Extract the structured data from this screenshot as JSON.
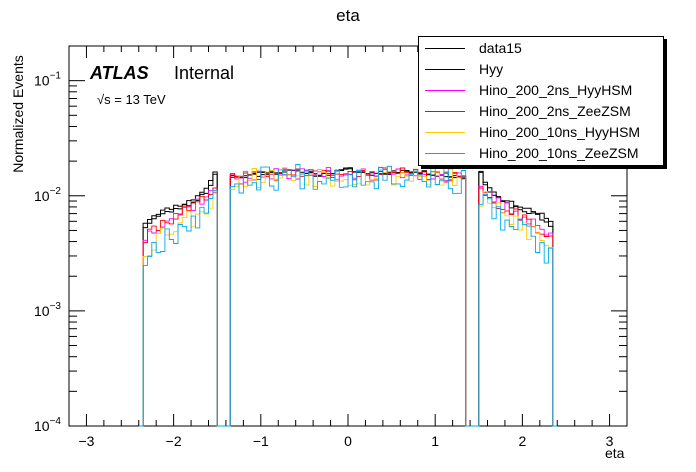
{
  "chart_data": {
    "type": "histogram",
    "title": "eta",
    "xlabel": "eta",
    "ylabel": "Normalized Events",
    "xlim": [
      -3.2,
      3.2
    ],
    "ylim": [
      0.0001,
      0.2
    ],
    "yscale": "log",
    "xticks": [
      "−3",
      "−2",
      "−1",
      "0",
      "1",
      "2",
      "3"
    ],
    "xtick_values": [
      -3,
      -2,
      -1,
      0,
      1,
      2,
      3
    ],
    "yticks": [
      {
        "base": "10",
        "exp": "−4",
        "value": 0.0001
      },
      {
        "base": "10",
        "exp": "−3",
        "value": 0.001
      },
      {
        "base": "10",
        "exp": "−2",
        "value": 0.01
      },
      {
        "base": "10",
        "exp": "−1",
        "value": 0.1
      }
    ],
    "acceptance": {
      "eta_max": 2.37,
      "crack_low": 1.37,
      "crack_high": 1.52
    },
    "bin_width": 0.05,
    "annotations": {
      "atlas": "ATLAS",
      "status": "Internal",
      "energy": "√s = 13 TeV"
    },
    "series": [
      {
        "name": "data15",
        "color": "#000000",
        "shape": [
          [
            0.0,
            0.017
          ],
          [
            0.3,
            0.015
          ],
          [
            0.6,
            0.0165
          ],
          [
            0.9,
            0.0158
          ],
          [
            1.1,
            0.015
          ],
          [
            1.3,
            0.0145
          ],
          [
            1.37,
            0.0145
          ],
          [
            1.52,
            0.0165
          ],
          [
            1.6,
            0.012
          ],
          [
            1.8,
            0.009
          ],
          [
            2.0,
            0.008
          ],
          [
            2.2,
            0.007
          ],
          [
            2.37,
            0.0055
          ]
        ],
        "noise": 0.04,
        "seed": 11
      },
      {
        "name": "Hyy",
        "color": "#000000",
        "shape": [
          [
            0.0,
            0.017
          ],
          [
            0.3,
            0.0155
          ],
          [
            0.6,
            0.0165
          ],
          [
            0.9,
            0.016
          ],
          [
            1.1,
            0.0152
          ],
          [
            1.3,
            0.0148
          ],
          [
            1.37,
            0.0148
          ],
          [
            1.52,
            0.016
          ],
          [
            1.6,
            0.011
          ],
          [
            1.8,
            0.0085
          ],
          [
            2.0,
            0.0075
          ],
          [
            2.2,
            0.0065
          ],
          [
            2.37,
            0.005
          ]
        ],
        "noise": 0.04,
        "seed": 23
      },
      {
        "name": "Hino_200_2ns_HyyHSM",
        "color": "#ff00ff",
        "shape": [
          [
            0.0,
            0.0155
          ],
          [
            0.5,
            0.016
          ],
          [
            1.0,
            0.015
          ],
          [
            1.37,
            0.014
          ],
          [
            1.52,
            0.011
          ],
          [
            1.8,
            0.008
          ],
          [
            2.1,
            0.0062
          ],
          [
            2.37,
            0.004
          ]
        ],
        "noise": 0.12,
        "seed": 37
      },
      {
        "name": "Hino_200_2ns_ZeeZSM",
        "color": "#ff0000",
        "shape": [
          [
            0.0,
            0.015
          ],
          [
            0.5,
            0.0158
          ],
          [
            1.0,
            0.015
          ],
          [
            1.37,
            0.014
          ],
          [
            1.52,
            0.0105
          ],
          [
            1.8,
            0.0078
          ],
          [
            2.1,
            0.006
          ],
          [
            2.37,
            0.0038
          ]
        ],
        "noise": 0.12,
        "seed": 41
      },
      {
        "name": "Hino_200_10ns_HyyHSM",
        "color": "#ffcc00",
        "shape": [
          [
            0.0,
            0.015
          ],
          [
            0.5,
            0.0155
          ],
          [
            1.0,
            0.0148
          ],
          [
            1.37,
            0.0135
          ],
          [
            1.52,
            0.0095
          ],
          [
            1.8,
            0.0065
          ],
          [
            2.1,
            0.005
          ],
          [
            2.37,
            0.003
          ]
        ],
        "noise": 0.22,
        "seed": 53
      },
      {
        "name": "Hino_200_10ns_ZeeZSM",
        "color": "#00aaee",
        "shape": [
          [
            0.0,
            0.015
          ],
          [
            0.5,
            0.0155
          ],
          [
            1.0,
            0.0148
          ],
          [
            1.37,
            0.013
          ],
          [
            1.52,
            0.009
          ],
          [
            1.8,
            0.006
          ],
          [
            2.1,
            0.0045
          ],
          [
            2.37,
            0.0025
          ]
        ],
        "noise": 0.26,
        "seed": 67
      }
    ]
  }
}
